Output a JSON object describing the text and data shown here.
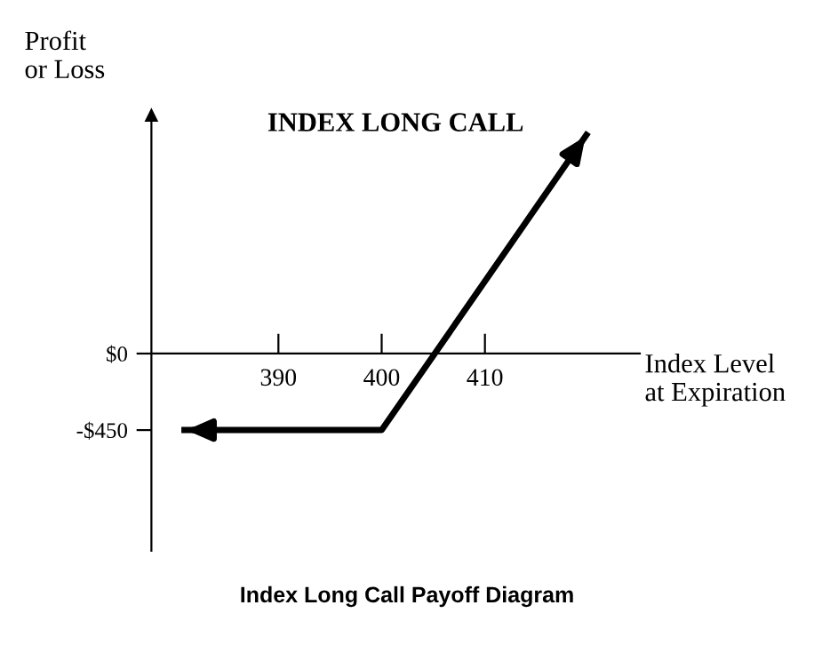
{
  "chart_data": {
    "type": "line",
    "title": "INDEX LONG CALL",
    "ylabel": "Profit\nor Loss",
    "xlabel": "Index Level\nat Expiration",
    "annotations": [
      "Index Long Call Payoff Diagram"
    ],
    "series": [
      {
        "color": "#000000",
        "x": [
          380.6,
          400,
          420
        ],
        "values": [
          -450,
          -450,
          1300
        ]
      }
    ],
    "xlim": [
      377.7,
      425
    ],
    "ylim": [
      -1160,
      1400
    ],
    "xticks": [
      390,
      400,
      410
    ],
    "yticks": [
      {
        "value": 0,
        "label": "$0"
      },
      {
        "value": -450,
        "label": "-$450"
      }
    ],
    "grid": false,
    "legend": false,
    "marker": "none",
    "line_style": "solid"
  }
}
